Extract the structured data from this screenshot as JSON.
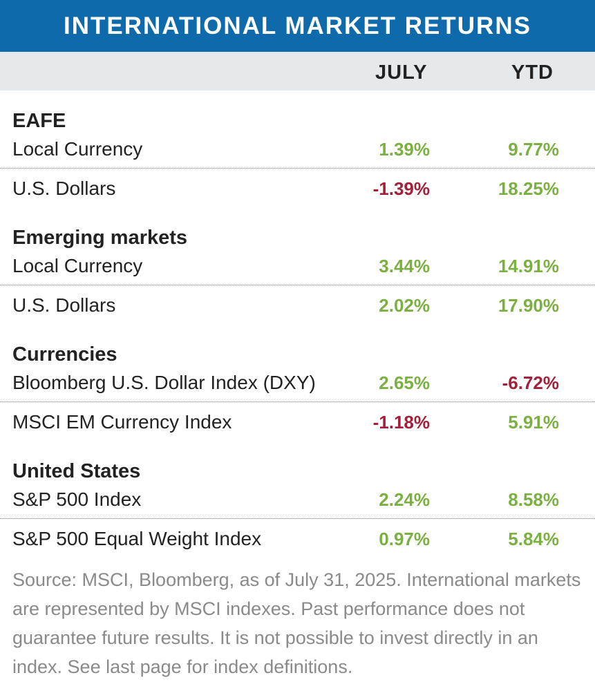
{
  "title": "INTERNATIONAL MARKET RETURNS",
  "columns": {
    "july": "JULY",
    "ytd": "YTD"
  },
  "groups": [
    {
      "name": "EAFE",
      "rows": [
        {
          "label": "Local Currency",
          "july": "1.39%",
          "ytd": "9.77%"
        },
        {
          "label": "U.S. Dollars",
          "july": "-1.39%",
          "ytd": "18.25%"
        }
      ]
    },
    {
      "name": "Emerging markets",
      "rows": [
        {
          "label": "Local Currency",
          "july": "3.44%",
          "ytd": "14.91%"
        },
        {
          "label": "U.S. Dollars",
          "july": "2.02%",
          "ytd": "17.90%"
        }
      ]
    },
    {
      "name": "Currencies",
      "rows": [
        {
          "label": "Bloomberg U.S. Dollar Index (DXY)",
          "july": "2.65%",
          "ytd": "-6.72%"
        },
        {
          "label": "MSCI EM Currency Index",
          "july": "-1.18%",
          "ytd": "5.91%"
        }
      ]
    },
    {
      "name": "United States",
      "rows": [
        {
          "label": "S&P 500 Index",
          "july": "2.24%",
          "ytd": "8.58%"
        },
        {
          "label": "S&P 500 Equal Weight Index",
          "july": "0.97%",
          "ytd": "5.84%"
        }
      ]
    }
  ],
  "source": "Source: MSCI, Bloomberg, as of July 31, 2025. International markets are  represented by MSCI indexes. Past performance does not guarantee future results. It is not possible to invest directly in an index. See last page for index definitions.",
  "colors": {
    "title_bg": "#0f6aab",
    "header_bg": "#e6e9ec",
    "positive": "#7ab03f",
    "negative": "#a3203a"
  },
  "chart_data": {
    "type": "table",
    "title": "INTERNATIONAL MARKET RETURNS",
    "columns": [
      "JULY",
      "YTD"
    ],
    "rows": [
      {
        "group": "EAFE",
        "label": "Local Currency",
        "values": [
          1.39,
          9.77
        ]
      },
      {
        "group": "EAFE",
        "label": "U.S. Dollars",
        "values": [
          -1.39,
          18.25
        ]
      },
      {
        "group": "Emerging markets",
        "label": "Local Currency",
        "values": [
          3.44,
          14.91
        ]
      },
      {
        "group": "Emerging markets",
        "label": "U.S. Dollars",
        "values": [
          2.02,
          17.9
        ]
      },
      {
        "group": "Currencies",
        "label": "Bloomberg U.S. Dollar Index (DXY)",
        "values": [
          2.65,
          -6.72
        ]
      },
      {
        "group": "Currencies",
        "label": "MSCI EM Currency Index",
        "values": [
          -1.18,
          5.91
        ]
      },
      {
        "group": "United States",
        "label": "S&P 500 Index",
        "values": [
          2.24,
          8.58
        ]
      },
      {
        "group": "United States",
        "label": "S&P 500 Equal Weight Index",
        "values": [
          0.97,
          5.84
        ]
      }
    ]
  }
}
